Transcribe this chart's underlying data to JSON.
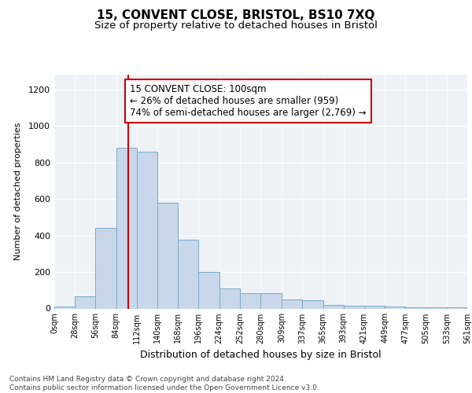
{
  "title": "15, CONVENT CLOSE, BRISTOL, BS10 7XQ",
  "subtitle": "Size of property relative to detached houses in Bristol",
  "xlabel": "Distribution of detached houses by size in Bristol",
  "ylabel": "Number of detached properties",
  "bar_values": [
    12,
    65,
    440,
    880,
    860,
    580,
    375,
    200,
    110,
    85,
    85,
    50,
    45,
    20,
    15,
    15,
    10,
    8,
    8,
    8
  ],
  "bin_edges": [
    0,
    28,
    56,
    84,
    112,
    140,
    168,
    196,
    224,
    252,
    280,
    309,
    337,
    365,
    393,
    421,
    449,
    477,
    505,
    533,
    561
  ],
  "tick_labels": [
    "0sqm",
    "28sqm",
    "56sqm",
    "84sqm",
    "112sqm",
    "140sqm",
    "168sqm",
    "196sqm",
    "224sqm",
    "252sqm",
    "280sqm",
    "309sqm",
    "337sqm",
    "365sqm",
    "393sqm",
    "421sqm",
    "449sqm",
    "477sqm",
    "505sqm",
    "533sqm",
    "561sqm"
  ],
  "bar_color": "#c8d8ea",
  "bar_edge_color": "#7aaac8",
  "vline_x": 100,
  "vline_color": "#cc0000",
  "annotation_box_text": "15 CONVENT CLOSE: 100sqm\n← 26% of detached houses are smaller (959)\n74% of semi-detached houses are larger (2,769) →",
  "annotation_fontsize": 8.5,
  "ylim": [
    0,
    1280
  ],
  "yticks": [
    0,
    200,
    400,
    600,
    800,
    1000,
    1200
  ],
  "background_color": "#eef2f7",
  "footer_text": "Contains HM Land Registry data © Crown copyright and database right 2024.\nContains public sector information licensed under the Open Government Licence v3.0.",
  "title_fontsize": 11,
  "subtitle_fontsize": 9.5
}
